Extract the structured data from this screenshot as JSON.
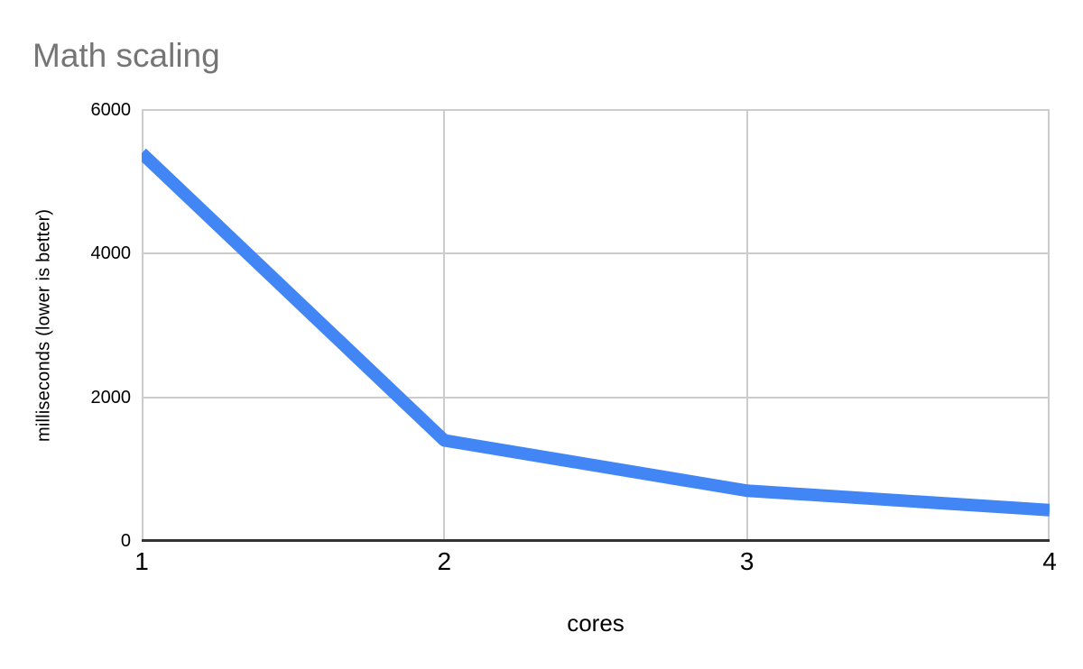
{
  "chart_data": {
    "type": "line",
    "title": "Math scaling",
    "xlabel": "cores",
    "ylabel": "milliseconds (lower is better)",
    "x": [
      1,
      2,
      3,
      4
    ],
    "values": [
      5400,
      1400,
      700,
      430
    ],
    "x_tick_labels": [
      "1",
      "2",
      "3",
      "4"
    ],
    "y_tick_labels": [
      "0",
      "2000",
      "4000",
      "6000"
    ],
    "y_ticks": [
      0,
      2000,
      4000,
      6000
    ],
    "x_ticks": [
      1,
      2,
      3,
      4
    ],
    "xlim": [
      1,
      4
    ],
    "ylim": [
      0,
      6000
    ],
    "grid": true,
    "legend": "none",
    "colors": {
      "line": "#4285f4",
      "title": "#757575",
      "grid": "#cccccc",
      "axis": "#333333",
      "tick_label": "#000000",
      "background": "#ffffff"
    }
  }
}
